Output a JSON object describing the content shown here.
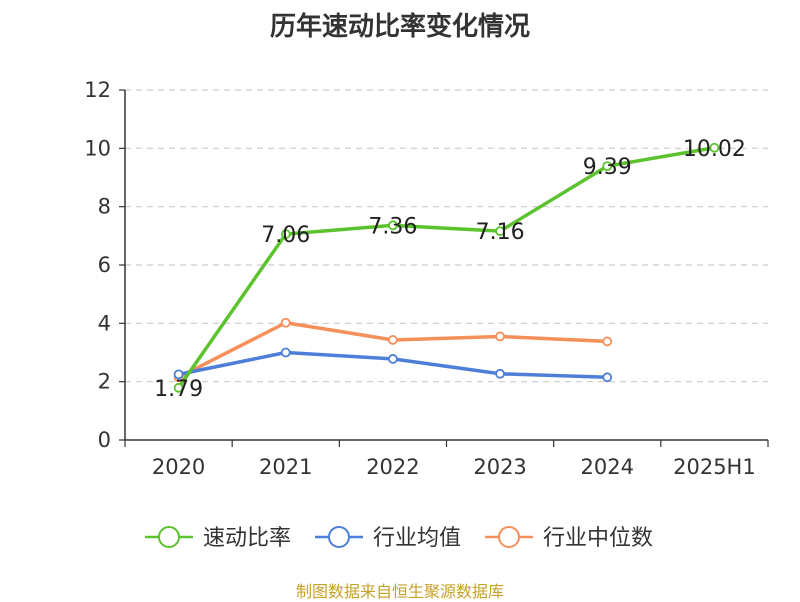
{
  "chart_data": {
    "type": "line",
    "title": "历年速动比率变化情况",
    "categories": [
      "2020",
      "2021",
      "2022",
      "2023",
      "2024",
      "2025H1"
    ],
    "ylim": [
      0,
      12
    ],
    "yticks": [
      0,
      2,
      4,
      6,
      8,
      10,
      12
    ],
    "grid": true,
    "legend_position": "bottom",
    "series": [
      {
        "name": "速动比率",
        "color": "#5cc22e",
        "values": [
          1.79,
          7.06,
          7.36,
          7.16,
          9.39,
          10.02
        ],
        "labels": [
          "1.79",
          "7.06",
          "7.36",
          "7.16",
          "9.39",
          "10.02"
        ]
      },
      {
        "name": "行业均值",
        "color": "#4e7fd8",
        "values": [
          2.25,
          3.0,
          2.78,
          2.27,
          2.15,
          null
        ]
      },
      {
        "name": "行业中位数",
        "color": "#f5905a",
        "values": [
          2.15,
          4.02,
          3.43,
          3.55,
          3.38,
          null
        ]
      }
    ]
  },
  "footer": {
    "source": "制图数据来自恒生聚源数据库",
    "source_color": "#c8a02a"
  }
}
